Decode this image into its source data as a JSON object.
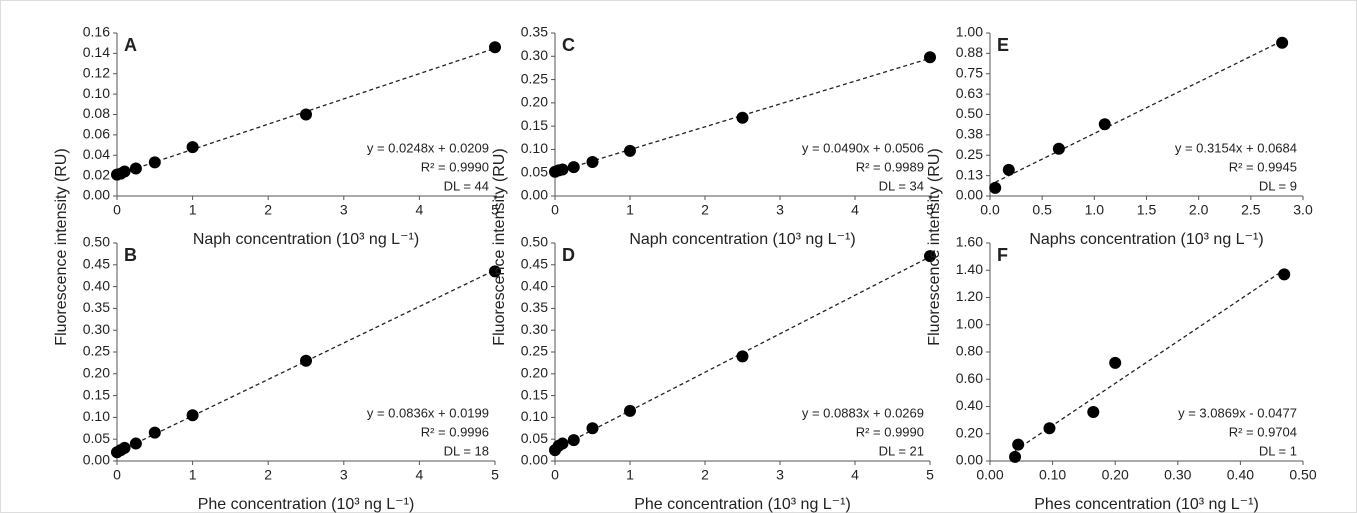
{
  "chart_data": [
    {
      "type": "scatter",
      "label": "A",
      "ylabel": "Fluorescence intensity (RU)",
      "xlabel": "Naph concentration (10³ ng L⁻¹)",
      "color": "#000000",
      "x": [
        0,
        0.05,
        0.1,
        0.25,
        0.5,
        1,
        2.5,
        5
      ],
      "values": [
        0.021,
        0.022,
        0.024,
        0.027,
        0.033,
        0.048,
        0.08,
        0.146
      ],
      "trendline": {
        "slope": 0.0248,
        "intercept": 0.0209
      },
      "annotations": [
        "y = 0.0248x + 0.0209",
        "R² = 0.9990",
        "DL = 44"
      ],
      "xlim": [
        0,
        5
      ],
      "xticks": [
        0,
        1,
        2,
        3,
        4,
        5
      ],
      "ylim": [
        0,
        0.16
      ],
      "yticks": [
        {
          "value": 0,
          "label": "0.00"
        },
        0.02,
        0.04,
        0.06,
        0.08,
        {
          "value": 0.1,
          "label": "0.10"
        },
        0.12,
        0.14,
        0.16
      ]
    },
    {
      "type": "scatter",
      "label": "B",
      "xlabel": "Phe concentration (10³ ng L⁻¹)",
      "color": "#000000",
      "x": [
        0,
        0.05,
        0.1,
        0.25,
        0.5,
        1,
        2.5,
        5
      ],
      "values": [
        0.02,
        0.025,
        0.03,
        0.04,
        0.065,
        0.105,
        0.23,
        0.435
      ],
      "trendline": {
        "slope": 0.0836,
        "intercept": 0.0199
      },
      "annotations": [
        "y = 0.0836x + 0.0199",
        "R² = 0.9996",
        "DL = 18"
      ],
      "xlim": [
        0,
        5
      ],
      "xticks": [
        0,
        1,
        2,
        3,
        4,
        5
      ],
      "ylim": [
        0,
        0.5
      ],
      "yticks": [
        {
          "value": 0,
          "label": "0.00"
        },
        0.05,
        {
          "value": 0.1,
          "label": "0.10"
        },
        0.15,
        {
          "value": 0.2,
          "label": "0.20"
        },
        0.25,
        {
          "value": 0.3,
          "label": "0.30"
        },
        0.35,
        {
          "value": 0.4,
          "label": "0.40"
        },
        0.45,
        {
          "value": 0.5,
          "label": "0.50"
        }
      ]
    },
    {
      "type": "scatter",
      "label": "C",
      "ylabel": "Fluorescence intensity (RU)",
      "xlabel": "Naph concentration (10³ ng L⁻¹)",
      "color": "#000000",
      "x": [
        0,
        0.05,
        0.1,
        0.25,
        0.5,
        1,
        2.5,
        5
      ],
      "values": [
        0.052,
        0.055,
        0.057,
        0.062,
        0.073,
        0.097,
        0.168,
        0.298
      ],
      "trendline": {
        "slope": 0.049,
        "intercept": 0.0506
      },
      "annotations": [
        "y = 0.0490x + 0.0506",
        "R² = 0.9989",
        "DL = 34"
      ],
      "xlim": [
        0,
        5
      ],
      "xticks": [
        0,
        1,
        2,
        3,
        4,
        5
      ],
      "ylim": [
        0,
        0.35
      ],
      "yticks": [
        {
          "value": 0,
          "label": "0.00"
        },
        0.05,
        {
          "value": 0.1,
          "label": "0.10"
        },
        0.15,
        {
          "value": 0.2,
          "label": "0.20"
        },
        0.25,
        {
          "value": 0.3,
          "label": "0.30"
        },
        0.35
      ]
    },
    {
      "type": "scatter",
      "label": "D",
      "xlabel": "Phe concentration (10³ ng L⁻¹)",
      "color": "#000000",
      "x": [
        0,
        0.05,
        0.1,
        0.25,
        0.5,
        1,
        2.5,
        5
      ],
      "values": [
        0.025,
        0.035,
        0.04,
        0.048,
        0.075,
        0.115,
        0.24,
        0.47
      ],
      "trendline": {
        "slope": 0.0883,
        "intercept": 0.0269
      },
      "annotations": [
        "y = 0.0883x + 0.0269",
        "R² = 0.9990",
        "DL = 21"
      ],
      "xlim": [
        0,
        5
      ],
      "xticks": [
        0,
        1,
        2,
        3,
        4,
        5
      ],
      "ylim": [
        0,
        0.5
      ],
      "yticks": [
        {
          "value": 0,
          "label": "0.00"
        },
        0.05,
        {
          "value": 0.1,
          "label": "0.10"
        },
        0.15,
        {
          "value": 0.2,
          "label": "0.20"
        },
        0.25,
        {
          "value": 0.3,
          "label": "0.30"
        },
        0.35,
        {
          "value": 0.4,
          "label": "0.40"
        },
        0.45,
        {
          "value": 0.5,
          "label": "0.50"
        }
      ]
    },
    {
      "type": "scatter",
      "label": "E",
      "ylabel": "Fluorescence intensity (RU)",
      "xlabel": "Naphs concentration (10³ ng L⁻¹)",
      "color": "#000000",
      "x": [
        0.05,
        0.18,
        0.66,
        1.1,
        2.8
      ],
      "values": [
        0.05,
        0.16,
        0.29,
        0.44,
        0.94
      ],
      "trendline": {
        "slope": 0.3154,
        "intercept": 0.0684
      },
      "annotations": [
        "y = 0.3154x + 0.0684",
        "R² = 0.9945",
        "DL = 9"
      ],
      "xlim": [
        0,
        3
      ],
      "xticks": [
        {
          "value": 0,
          "label": "0.0"
        },
        0.5,
        {
          "value": 1,
          "label": "1.0"
        },
        1.5,
        {
          "value": 2,
          "label": "2.0"
        },
        2.5,
        {
          "value": 3,
          "label": "3.0"
        }
      ],
      "ylim": [
        0,
        1
      ],
      "yticks": [
        {
          "value": 0,
          "label": "0.00"
        },
        {
          "value": 0.125,
          "label": "0.13"
        },
        0.25,
        {
          "value": 0.375,
          "label": "0.38"
        },
        {
          "value": 0.5,
          "label": "0.50"
        },
        {
          "value": 0.625,
          "label": "0.63"
        },
        0.75,
        {
          "value": 0.875,
          "label": "0.88"
        },
        {
          "value": 1,
          "label": "1.00"
        }
      ]
    },
    {
      "type": "scatter",
      "label": "F",
      "xlabel": "Phes concentration (10³ ng L⁻¹)",
      "color": "#000000",
      "x": [
        0.04,
        0.045,
        0.095,
        0.165,
        0.2,
        0.47
      ],
      "values": [
        0.03,
        0.12,
        0.24,
        0.36,
        0.72,
        1.37
      ],
      "trendline": {
        "slope": 3.0869,
        "intercept": -0.0477
      },
      "annotations": [
        "y = 3.0869x - 0.0477",
        "R² = 0.9704",
        "DL = 1"
      ],
      "xlim": [
        0,
        0.5
      ],
      "xticks": [
        {
          "value": 0,
          "label": "0.00"
        },
        {
          "value": 0.1,
          "label": "0.10"
        },
        {
          "value": 0.2,
          "label": "0.20"
        },
        {
          "value": 0.3,
          "label": "0.30"
        },
        {
          "value": 0.4,
          "label": "0.40"
        },
        {
          "value": 0.5,
          "label": "0.50"
        }
      ],
      "ylim": [
        0,
        1.6
      ],
      "yticks": [
        {
          "value": 0,
          "label": "0.00"
        },
        {
          "value": 0.2,
          "label": "0.20"
        },
        {
          "value": 0.4,
          "label": "0.40"
        },
        {
          "value": 0.6,
          "label": "0.60"
        },
        {
          "value": 0.8,
          "label": "0.80"
        },
        {
          "value": 1,
          "label": "1.00"
        },
        {
          "value": 1.2,
          "label": "1.20"
        },
        {
          "value": 1.4,
          "label": "1.40"
        },
        {
          "value": 1.6,
          "label": "1.60"
        }
      ]
    }
  ]
}
